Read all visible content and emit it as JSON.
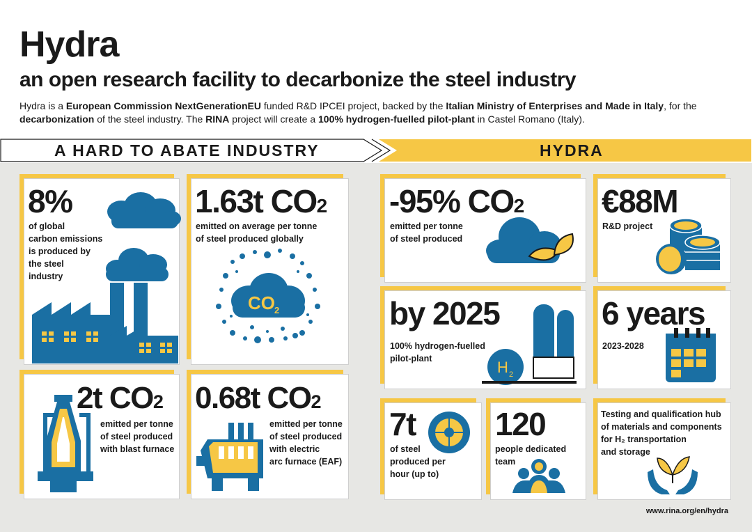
{
  "header": {
    "title": "Hydra",
    "subtitle": "an open research facility to decarbonize the steel industry",
    "intro": [
      {
        "t": "Hydra is a ",
        "b": false
      },
      {
        "t": "European Commission NextGenerationEU",
        "b": true
      },
      {
        "t": " funded R&D IPCEI project, backed by the ",
        "b": false
      },
      {
        "t": "Italian Ministry of Enterprises and Made in Italy",
        "b": true
      },
      {
        "t": ", for the ",
        "b": false
      },
      {
        "t": "decarbonization",
        "b": true
      },
      {
        "t": " of the steel industry. The ",
        "b": false
      },
      {
        "t": "RINA",
        "b": true
      },
      {
        "t": " project will create a ",
        "b": false
      },
      {
        "t": "100% hydrogen-fuelled pilot-plant",
        "b": true
      },
      {
        "t": " in Castel Romano (Italy).",
        "b": false
      }
    ]
  },
  "banners": {
    "left": "A HARD TO ABATE INDUSTRY",
    "right": "HYDRA"
  },
  "left": {
    "c1": {
      "value": "8%",
      "lines": [
        "of global",
        "carbon emissions",
        "is produced by",
        "the steel",
        "industry"
      ]
    },
    "c2": {
      "value": "1.63t CO",
      "sub": "2",
      "lines": [
        "emitted on average per tonne",
        "of steel produced globally"
      ],
      "icon_label": "CO",
      "icon_sub": "2"
    },
    "c3": {
      "value": "2t CO",
      "sub": "2",
      "lines": [
        "emitted per tonne",
        "of steel produced",
        "with blast furnace"
      ]
    },
    "c4": {
      "value": "0.68t CO",
      "sub": "2",
      "lines": [
        "emitted per tonne",
        "of steel produced",
        "with electric",
        "arc furnace (EAF)"
      ]
    }
  },
  "right": {
    "c1": {
      "value": "-95% CO",
      "sub": "2",
      "lines": [
        "emitted per tonne",
        "of steel produced"
      ]
    },
    "c2": {
      "value": "€88M",
      "lines": [
        "R&D project"
      ]
    },
    "c3": {
      "value": "by 2025",
      "lines": [
        "100% hydrogen-fuelled",
        "pilot-plant"
      ],
      "icon_label": "H",
      "icon_sub": "2"
    },
    "c4": {
      "value": "6 years",
      "lines": [
        "2023-2028"
      ]
    },
    "c5": {
      "value": "7t",
      "lines": [
        "of steel",
        "produced per",
        "hour (up to)"
      ]
    },
    "c6": {
      "value": "120",
      "lines": [
        "people dedicated",
        "team"
      ]
    },
    "c7": {
      "lines": [
        "Testing and qualification hub",
        "of materials and components",
        "for H₂ transportation",
        "and storage"
      ]
    }
  },
  "footer": "www.rina.org/en/hydra",
  "colors": {
    "yellow": "#f6c745",
    "blue": "#1a6fa3",
    "dark": "#1a1a1a",
    "gray": "#e7e7e4"
  }
}
